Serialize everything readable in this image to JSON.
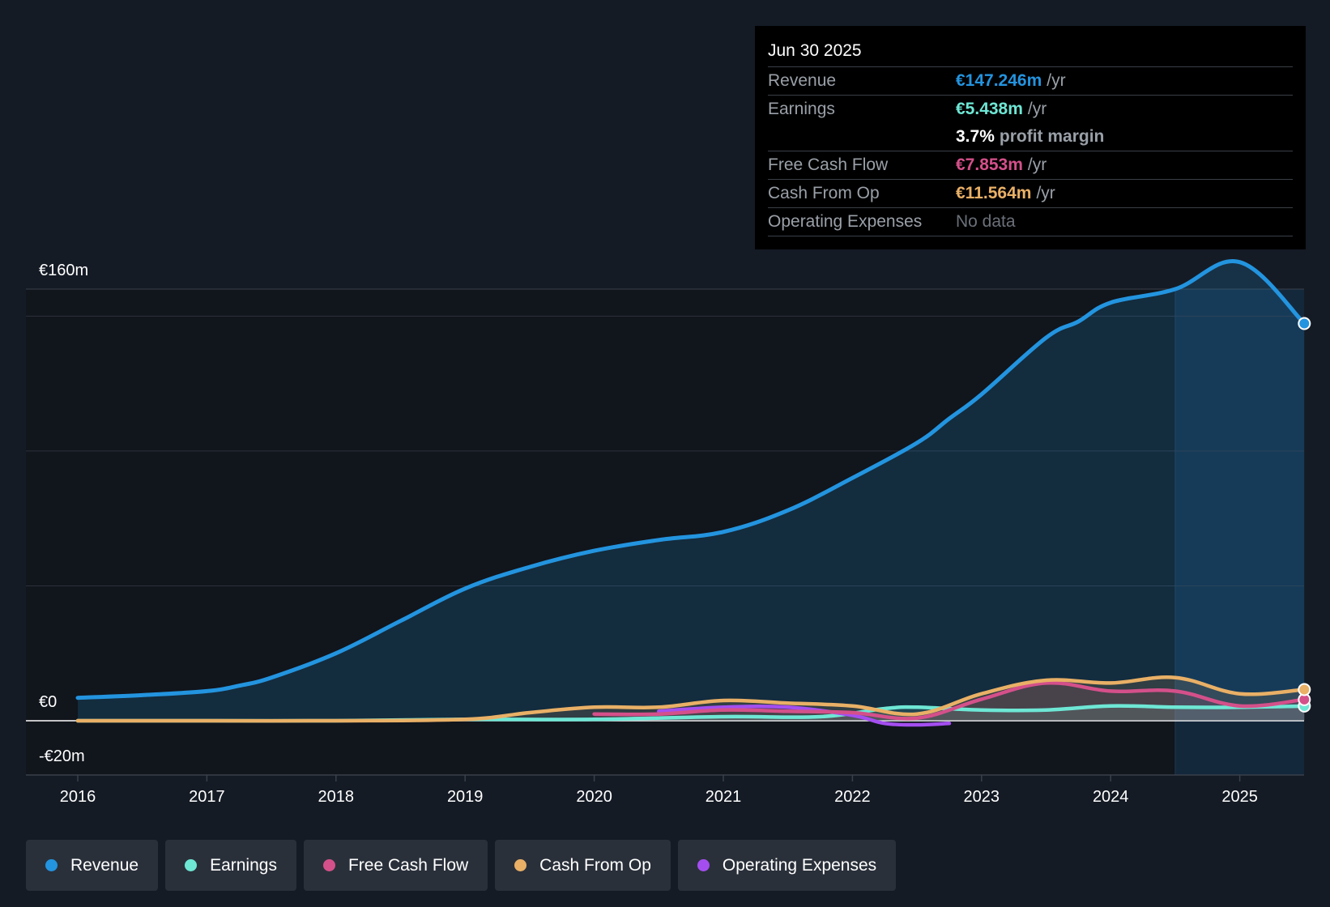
{
  "colors": {
    "revenue": "#2394df",
    "earnings": "#6ee7d5",
    "fcf": "#d4508a",
    "cfo": "#e9b066",
    "opex": "#a44ef0",
    "background": "#151b25",
    "past_band": "#11151c",
    "forecast_band": "#14283c"
  },
  "tooltip": {
    "date": "Jun 30 2025",
    "revenue_label": "Revenue",
    "revenue_value": "€147.246m",
    "revenue_unit": "/yr",
    "earnings_label": "Earnings",
    "earnings_value": "€5.438m",
    "earnings_unit": "/yr",
    "margin_value": "3.7%",
    "margin_label": "profit margin",
    "fcf_label": "Free Cash Flow",
    "fcf_value": "€7.853m",
    "fcf_unit": "/yr",
    "cfo_label": "Cash From Op",
    "cfo_value": "€11.564m",
    "cfo_unit": "/yr",
    "opex_label": "Operating Expenses",
    "opex_value": "No data"
  },
  "legend": [
    {
      "label": "Revenue",
      "color": "#2394df"
    },
    {
      "label": "Earnings",
      "color": "#6ee7d5"
    },
    {
      "label": "Free Cash Flow",
      "color": "#d4508a"
    },
    {
      "label": "Cash From Op",
      "color": "#e9b066"
    },
    {
      "label": "Operating Expenses",
      "color": "#a44ef0"
    }
  ],
  "chart_data": {
    "type": "line",
    "title": "",
    "xlabel": "",
    "ylabel": "",
    "xlim": [
      2016,
      2025.5
    ],
    "ylim": [
      -20,
      160
    ],
    "ytick_labels": [
      {
        "value": 160,
        "label": "€160m"
      },
      {
        "value": 0,
        "label": "€0"
      },
      {
        "value": -20,
        "label": "-€20m"
      }
    ],
    "grid_values": [
      150,
      100,
      50
    ],
    "xticks": [
      2016,
      2017,
      2018,
      2019,
      2020,
      2021,
      2022,
      2023,
      2024,
      2025
    ],
    "forecast_start": 2024.5,
    "series": [
      {
        "name": "Revenue",
        "key": "revenue",
        "area": true,
        "x": [
          2016,
          2016.5,
          2017,
          2017.25,
          2017.5,
          2018,
          2018.5,
          2019,
          2019.5,
          2020,
          2020.5,
          2021,
          2021.5,
          2022,
          2022.5,
          2022.75,
          2023,
          2023.5,
          2023.75,
          2024,
          2024.5,
          2025,
          2025.5
        ],
        "values": [
          8.5,
          9.5,
          11,
          13,
          16,
          25,
          37,
          49,
          57,
          63,
          67,
          70,
          78,
          90,
          103,
          112,
          121,
          142,
          148,
          155,
          160,
          170,
          147.246
        ]
      },
      {
        "name": "Earnings",
        "key": "earnings",
        "area": false,
        "x": [
          2016,
          2017,
          2018,
          2019,
          2020,
          2021,
          2021.75,
          2022.25,
          2022.5,
          2023,
          2023.5,
          2024,
          2024.5,
          2025,
          2025.5
        ],
        "values": [
          0,
          0,
          0,
          0.5,
          0.5,
          1.5,
          1.5,
          4.5,
          5,
          4,
          4,
          5.5,
          5,
          5,
          5.438
        ]
      },
      {
        "name": "Free Cash Flow",
        "key": "fcf",
        "area": false,
        "x": [
          2020,
          2020.5,
          2021,
          2021.5,
          2022,
          2022.5,
          2023,
          2023.5,
          2024,
          2024.5,
          2025,
          2025.5
        ],
        "values": [
          2.5,
          2.5,
          4,
          3.5,
          3,
          1,
          8,
          14,
          11,
          11,
          5.5,
          7.853
        ]
      },
      {
        "name": "Cash From Op",
        "key": "cfo",
        "area": false,
        "x": [
          2016,
          2017,
          2018,
          2019,
          2019.5,
          2020,
          2020.5,
          2021,
          2021.5,
          2022,
          2022.5,
          2023,
          2023.5,
          2024,
          2024.5,
          2025,
          2025.5
        ],
        "values": [
          0,
          0,
          0,
          0.5,
          3,
          5,
          5,
          7.5,
          6.5,
          5.5,
          2.5,
          10,
          15,
          14,
          16,
          10,
          11.564
        ]
      },
      {
        "name": "Operating Expenses",
        "key": "opex",
        "area": false,
        "x": [
          2020.5,
          2021,
          2021.5,
          2022,
          2022.25,
          2022.5,
          2022.75
        ],
        "values": [
          3.5,
          5,
          5,
          2,
          -1,
          -1.5,
          -1
        ]
      }
    ]
  }
}
